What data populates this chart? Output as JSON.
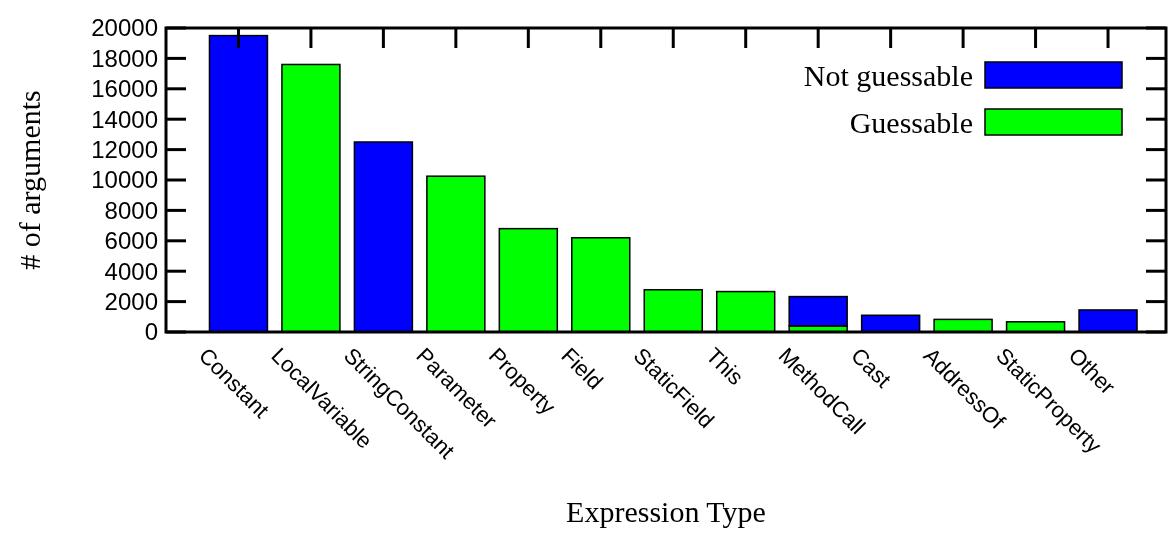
{
  "chart_data": {
    "type": "bar",
    "stacked": true,
    "xlabel": "Expression Type",
    "ylabel": "# of arguments",
    "categories": [
      "Constant",
      "LocalVariable",
      "StringConstant",
      "Parameter",
      "Property",
      "Field",
      "StaticField",
      "This",
      "MethodCall",
      "Cast",
      "AddressOf",
      "StaticProperty",
      "Other"
    ],
    "series": [
      {
        "name": "Guessable",
        "color": "#00ff00",
        "values": [
          0,
          17600,
          0,
          10250,
          6800,
          6200,
          2780,
          2660,
          400,
          0,
          830,
          670,
          0
        ]
      },
      {
        "name": "Not guessable",
        "color": "#0000ff",
        "values": [
          19500,
          0,
          12500,
          0,
          0,
          0,
          0,
          0,
          1930,
          1100,
          0,
          0,
          1450
        ]
      }
    ],
    "ylim": [
      0,
      20000
    ],
    "yticks": [
      0,
      2000,
      4000,
      6000,
      8000,
      10000,
      12000,
      14000,
      16000,
      18000,
      20000
    ],
    "grid": false,
    "legend": "top right"
  }
}
